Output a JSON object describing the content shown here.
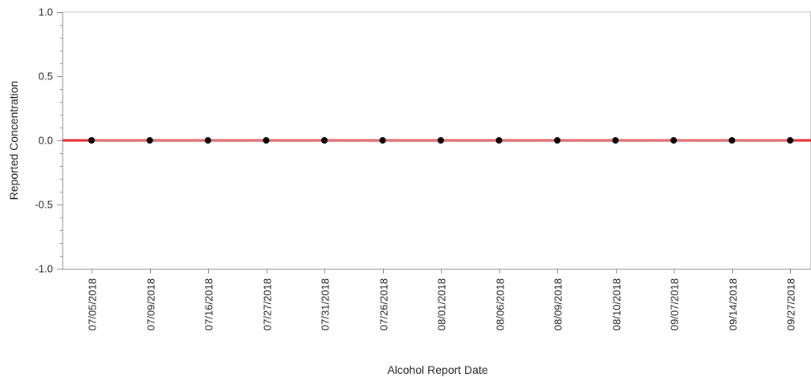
{
  "chart_data": {
    "type": "scatter",
    "title": "",
    "xlabel": "Alcohol Report Date",
    "ylabel": "Reported Concentration",
    "categories": [
      "07/05/2018",
      "07/09/2018",
      "07/16/2018",
      "07/27/2018",
      "07/31/2018",
      "07/26/2018",
      "08/01/2018",
      "08/06/2018",
      "08/09/2018",
      "08/10/2018",
      "09/07/2018",
      "09/14/2018",
      "09/27/2018"
    ],
    "values": [
      0,
      0,
      0,
      0,
      0,
      0,
      0,
      0,
      0,
      0,
      0,
      0,
      0
    ],
    "ylim": [
      -1.0,
      1.0
    ],
    "y_ticks": [
      "1.0",
      "0.5",
      "0.0",
      "-0.5",
      "-1.0"
    ],
    "y_tick_values": [
      1.0,
      0.5,
      0.0,
      -0.5,
      -1.0
    ],
    "y_minor_step": 0.1,
    "reference_line": {
      "y": 0.0
    },
    "grid": false,
    "legend": "none",
    "colors": {
      "points": "#000000",
      "reference_line": "#e8232a",
      "connect_line": "#c8c8c8",
      "axis": "#8c8c8c",
      "frame": "#c8c8c8"
    }
  }
}
